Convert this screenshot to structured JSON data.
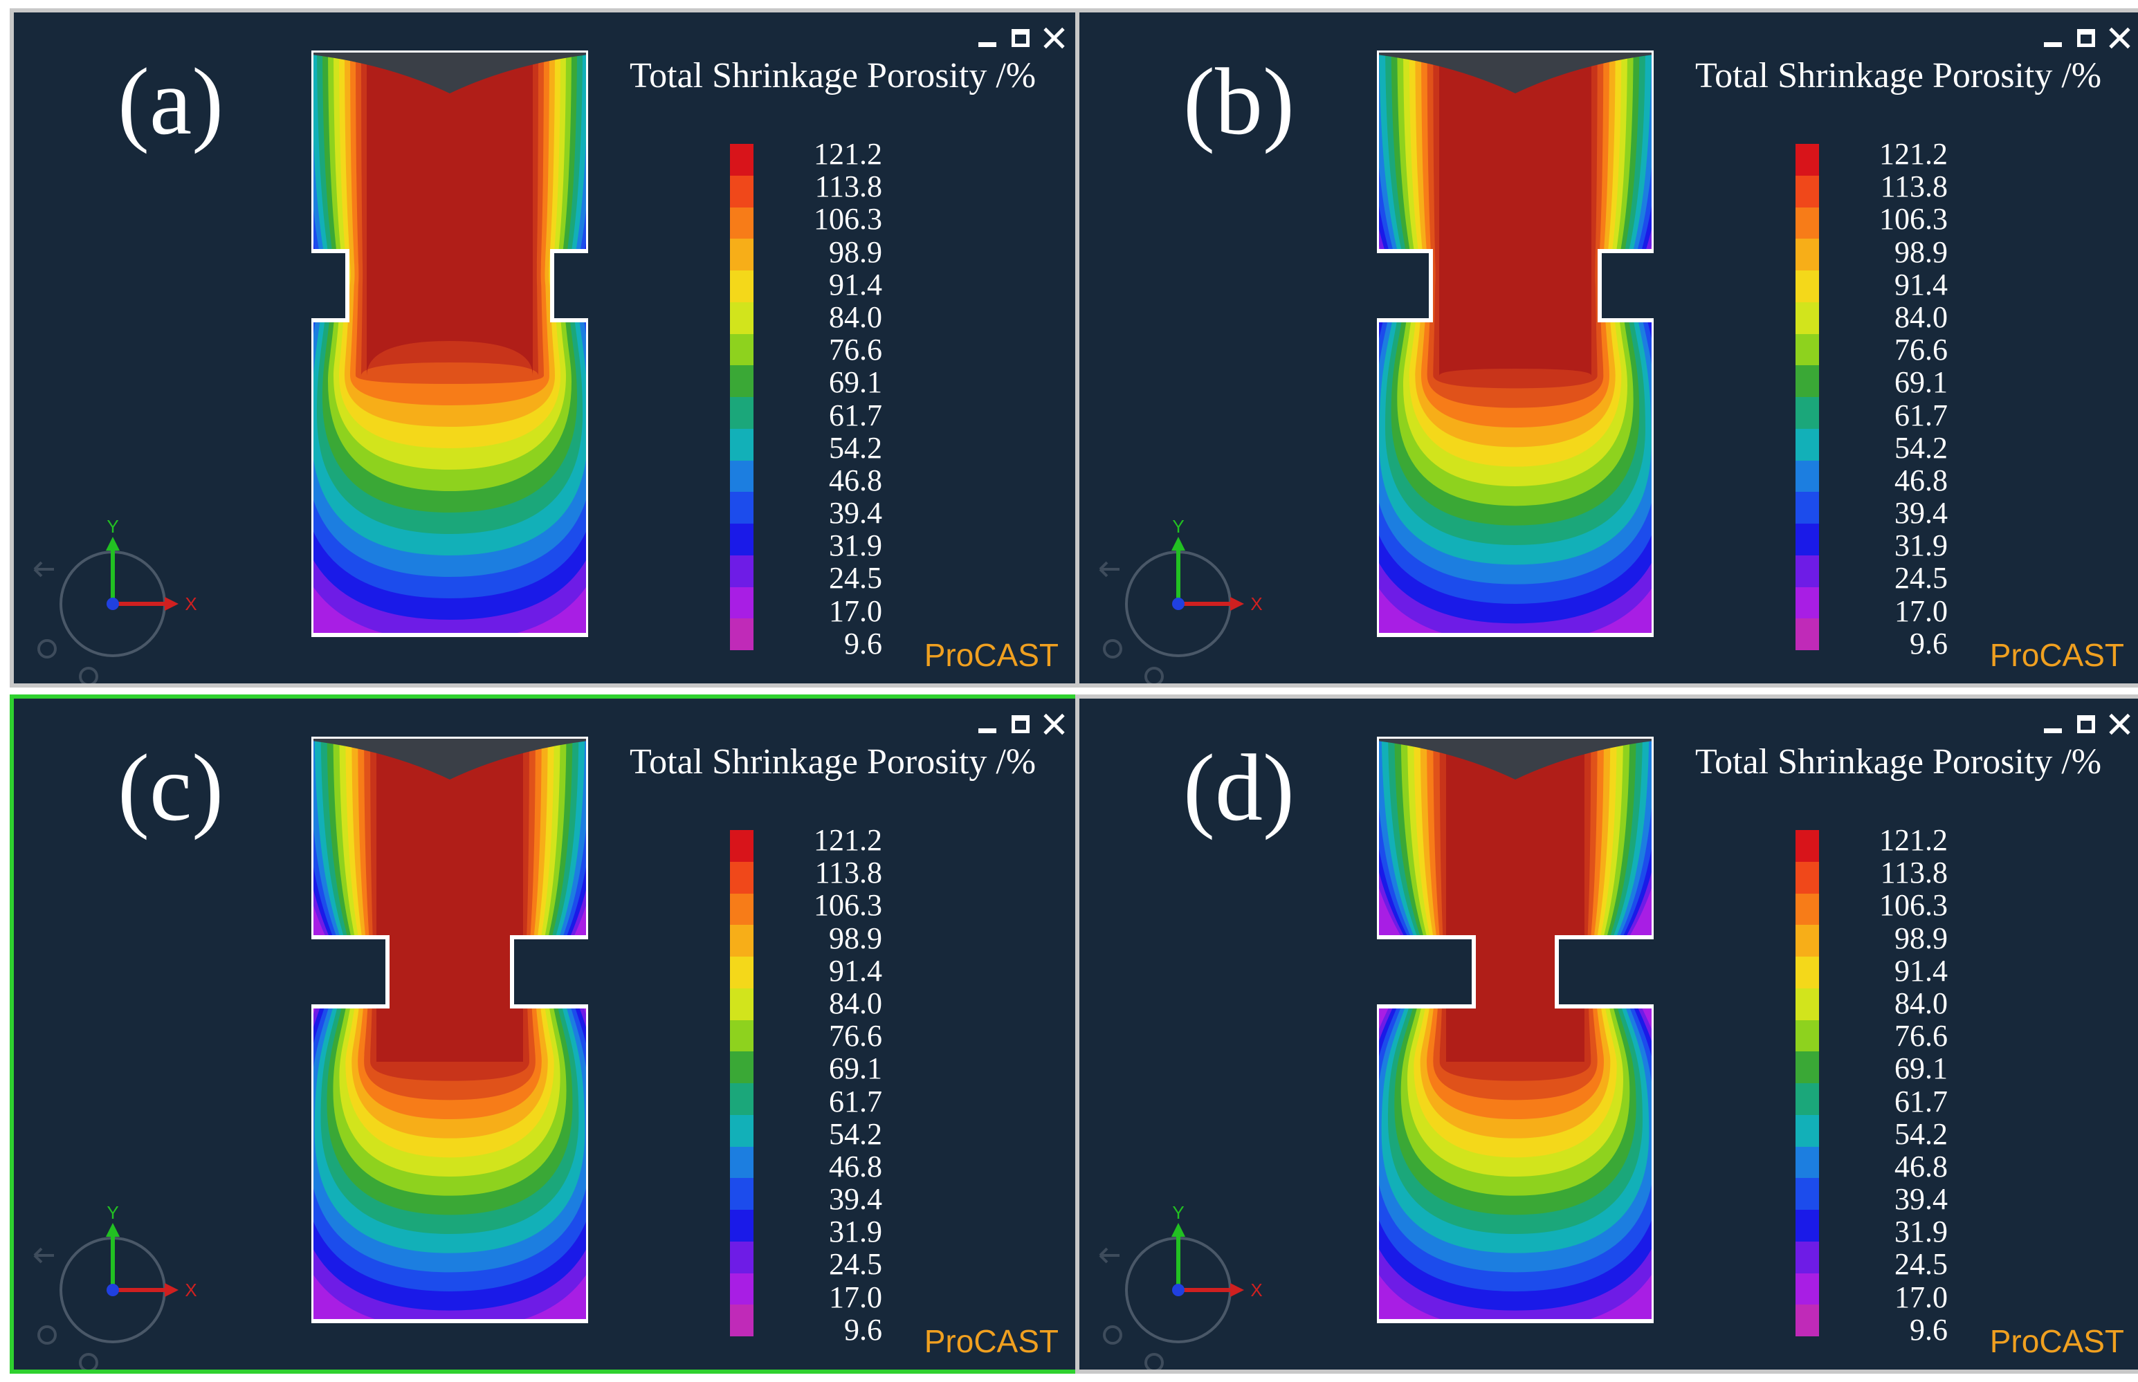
{
  "panels": [
    {
      "id": "a",
      "label": "(a)",
      "legend_title": "Total Shrinkage Porosity /%",
      "brand": "ProCAST",
      "active": false
    },
    {
      "id": "b",
      "label": "(b)",
      "legend_title": "Total Shrinkage Porosity /%",
      "brand": "ProCAST",
      "active": false
    },
    {
      "id": "c",
      "label": "(c)",
      "legend_title": "Total Shrinkage Porosity /%",
      "brand": "ProCAST",
      "active": true
    },
    {
      "id": "d",
      "label": "(d)",
      "legend_title": "Total Shrinkage Porosity /%",
      "brand": "ProCAST",
      "active": false
    }
  ],
  "legend": {
    "values": [
      "121.2",
      "113.8",
      "106.3",
      "98.9",
      "91.4",
      "84.0",
      "76.6",
      "69.1",
      "61.7",
      "54.2",
      "46.8",
      "39.4",
      "31.9",
      "24.5",
      "17.0",
      "9.6"
    ],
    "colors": [
      "#d8141a",
      "#f0481a",
      "#f77c18",
      "#f7ae18",
      "#f4d81a",
      "#d2e41c",
      "#8ed21e",
      "#3aa836",
      "#1ba77a",
      "#12b0b8",
      "#1c7ee0",
      "#1c4cec",
      "#1a1ae8",
      "#6e1ce6",
      "#a81ee4",
      "#c02ab8"
    ]
  },
  "axis": {
    "x": "X",
    "y": "Y"
  },
  "icons": {
    "minimize": "minimize-icon",
    "maximize": "maximize-icon",
    "close": "close-icon"
  }
}
